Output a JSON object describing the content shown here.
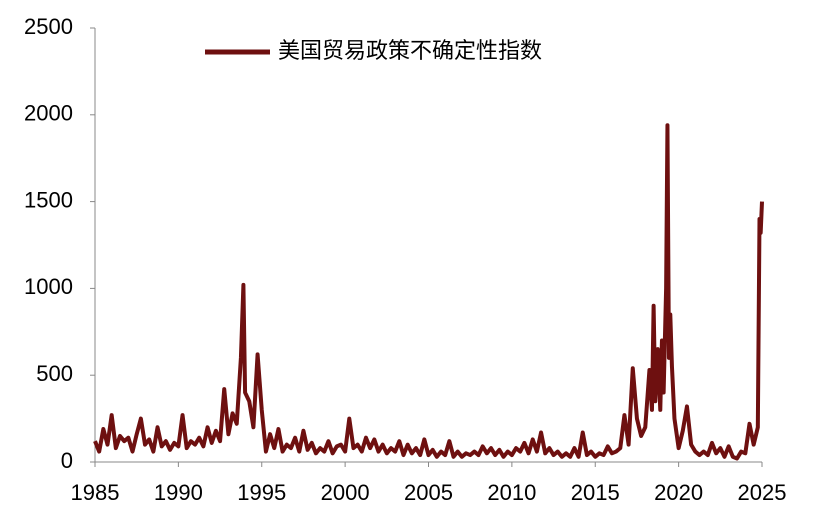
{
  "chart_data": {
    "type": "line",
    "series": [
      {
        "name": "美国贸易政策不确定性指数",
        "color": "#6e1010",
        "x": [
          1985.0,
          1985.25,
          1985.5,
          1985.75,
          1986.0,
          1986.25,
          1986.5,
          1986.75,
          1987.0,
          1987.25,
          1987.5,
          1987.75,
          1988.0,
          1988.25,
          1988.5,
          1988.75,
          1989.0,
          1989.25,
          1989.5,
          1989.75,
          1990.0,
          1990.25,
          1990.5,
          1990.75,
          1991.0,
          1991.25,
          1991.5,
          1991.75,
          1992.0,
          1992.25,
          1992.5,
          1992.75,
          1993.0,
          1993.25,
          1993.5,
          1993.75,
          1993.9,
          1994.0,
          1994.25,
          1994.5,
          1994.75,
          1995.0,
          1995.25,
          1995.5,
          1995.75,
          1996.0,
          1996.25,
          1996.5,
          1996.75,
          1997.0,
          1997.25,
          1997.5,
          1997.75,
          1998.0,
          1998.25,
          1998.5,
          1998.75,
          1999.0,
          1999.25,
          1999.5,
          1999.75,
          2000.0,
          2000.25,
          2000.5,
          2000.75,
          2001.0,
          2001.25,
          2001.5,
          2001.75,
          2002.0,
          2002.25,
          2002.5,
          2002.75,
          2003.0,
          2003.25,
          2003.5,
          2003.75,
          2004.0,
          2004.25,
          2004.5,
          2004.75,
          2005.0,
          2005.25,
          2005.5,
          2005.75,
          2006.0,
          2006.25,
          2006.5,
          2006.75,
          2007.0,
          2007.25,
          2007.5,
          2007.75,
          2008.0,
          2008.25,
          2008.5,
          2008.75,
          2009.0,
          2009.25,
          2009.5,
          2009.75,
          2010.0,
          2010.25,
          2010.5,
          2010.75,
          2011.0,
          2011.25,
          2011.5,
          2011.75,
          2012.0,
          2012.25,
          2012.5,
          2012.75,
          2013.0,
          2013.25,
          2013.5,
          2013.75,
          2014.0,
          2014.25,
          2014.5,
          2014.75,
          2015.0,
          2015.25,
          2015.5,
          2015.75,
          2016.0,
          2016.25,
          2016.5,
          2016.75,
          2017.0,
          2017.25,
          2017.5,
          2017.75,
          2018.0,
          2018.25,
          2018.4,
          2018.5,
          2018.6,
          2018.75,
          2018.9,
          2019.0,
          2019.1,
          2019.25,
          2019.33,
          2019.42,
          2019.5,
          2019.6,
          2019.75,
          2020.0,
          2020.25,
          2020.5,
          2020.75,
          2021.0,
          2021.25,
          2021.5,
          2021.75,
          2022.0,
          2022.25,
          2022.5,
          2022.75,
          2023.0,
          2023.25,
          2023.5,
          2023.75,
          2024.0,
          2024.25,
          2024.5,
          2024.75,
          2024.85,
          2024.92,
          2025.0
        ],
        "values": [
          120,
          60,
          190,
          100,
          270,
          80,
          150,
          120,
          140,
          60,
          160,
          250,
          100,
          130,
          60,
          200,
          90,
          120,
          70,
          110,
          90,
          270,
          80,
          120,
          100,
          140,
          90,
          200,
          110,
          180,
          120,
          420,
          160,
          280,
          220,
          600,
          1020,
          400,
          350,
          200,
          620,
          300,
          60,
          160,
          80,
          190,
          60,
          100,
          80,
          140,
          60,
          180,
          70,
          110,
          50,
          80,
          60,
          120,
          50,
          90,
          100,
          60,
          250,
          80,
          100,
          60,
          140,
          80,
          130,
          60,
          100,
          50,
          80,
          60,
          120,
          40,
          100,
          50,
          80,
          40,
          130,
          40,
          70,
          30,
          60,
          40,
          120,
          30,
          60,
          30,
          50,
          40,
          60,
          40,
          90,
          50,
          80,
          40,
          70,
          30,
          60,
          40,
          80,
          60,
          110,
          50,
          130,
          60,
          170,
          50,
          80,
          40,
          60,
          30,
          50,
          30,
          80,
          30,
          170,
          40,
          60,
          30,
          50,
          40,
          90,
          50,
          60,
          80,
          270,
          100,
          540,
          250,
          150,
          200,
          530,
          300,
          900,
          350,
          650,
          300,
          700,
          400,
          1000,
          1940,
          600,
          850,
          550,
          250,
          80,
          180,
          320,
          100,
          60,
          40,
          60,
          40,
          110,
          50,
          80,
          30,
          90,
          30,
          20,
          60,
          50,
          220,
          100,
          200,
          1400,
          1320,
          1500
        ]
      }
    ],
    "xlim": [
      1985,
      2025
    ],
    "xticks": [
      1985,
      1990,
      1995,
      2000,
      2005,
      2010,
      2015,
      2020,
      2025
    ],
    "ylim": [
      0,
      2500
    ],
    "yticks": [
      0,
      500,
      1000,
      1500,
      2000,
      2500
    ],
    "legend": "top"
  }
}
